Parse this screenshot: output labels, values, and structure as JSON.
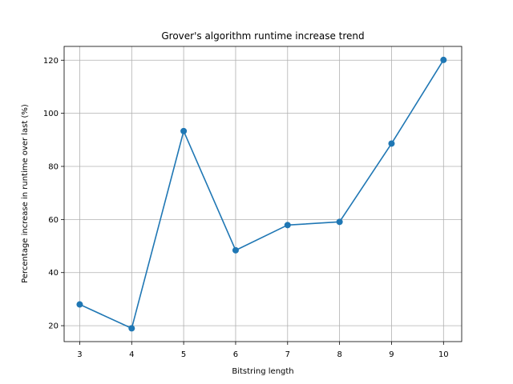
{
  "chart_data": {
    "type": "line",
    "title": "Grover's algorithm runtime increase trend",
    "xlabel": "Bitstring length",
    "ylabel": "Percentage increase in runtime over last (%)",
    "x": [
      3,
      4,
      5,
      6,
      7,
      8,
      9,
      10
    ],
    "series": [
      {
        "values": [
          28.0,
          19.0,
          93.3,
          48.4,
          57.9,
          59.1,
          88.6,
          120.1
        ]
      }
    ],
    "xlim": [
      2.7,
      10.35
    ],
    "ylim": [
      14.0,
      125.2
    ],
    "xticks": [
      "3",
      "4",
      "5",
      "6",
      "7",
      "8",
      "9",
      "10"
    ],
    "yticks": [
      20,
      40,
      60,
      80,
      100,
      120
    ],
    "grid": true,
    "markers": true,
    "colors": {
      "line": "#1f77b4",
      "grid": "#b0b0b0",
      "axis": "#000000"
    }
  }
}
